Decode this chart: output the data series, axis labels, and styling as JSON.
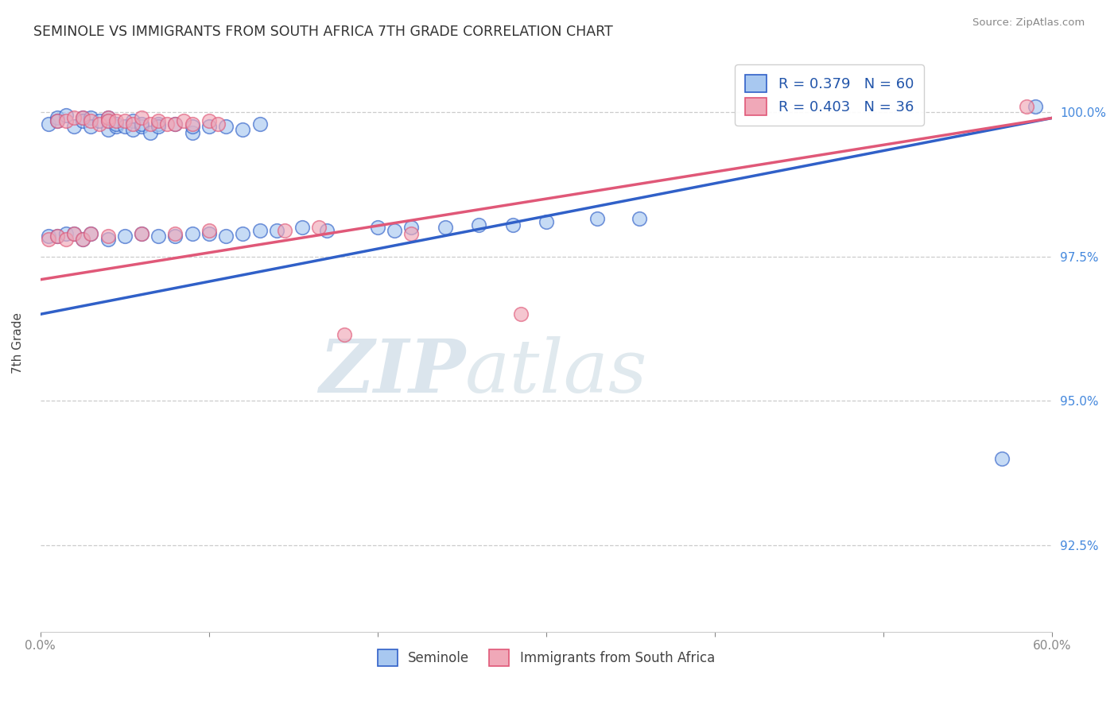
{
  "title": "SEMINOLE VS IMMIGRANTS FROM SOUTH AFRICA 7TH GRADE CORRELATION CHART",
  "source": "Source: ZipAtlas.com",
  "ylabel": "7th Grade",
  "x_min": 0.0,
  "x_max": 0.6,
  "y_min": 0.91,
  "y_max": 1.01,
  "legend_seminole": "Seminole",
  "legend_immigrants": "Immigrants from South Africa",
  "R_seminole": 0.379,
  "N_seminole": 60,
  "R_immigrants": 0.403,
  "N_immigrants": 36,
  "color_seminole": "#A8C8F0",
  "color_immigrants": "#F0A8B8",
  "color_line_seminole": "#3060C8",
  "color_line_immigrants": "#E05878",
  "blue_x": [
    0.005,
    0.01,
    0.01,
    0.015,
    0.02,
    0.025,
    0.025,
    0.03,
    0.03,
    0.035,
    0.04,
    0.04,
    0.04,
    0.045,
    0.045,
    0.05,
    0.055,
    0.055,
    0.06,
    0.06,
    0.065,
    0.07,
    0.07,
    0.08,
    0.09,
    0.09,
    0.1,
    0.11,
    0.12,
    0.13,
    0.005,
    0.01,
    0.015,
    0.02,
    0.025,
    0.03,
    0.04,
    0.05,
    0.06,
    0.07,
    0.08,
    0.09,
    0.1,
    0.11,
    0.12,
    0.13,
    0.14,
    0.155,
    0.17,
    0.2,
    0.21,
    0.22,
    0.24,
    0.26,
    0.28,
    0.3,
    0.33,
    0.355,
    0.57,
    0.59
  ],
  "blue_y": [
    0.998,
    0.999,
    0.9985,
    0.9995,
    0.9975,
    0.999,
    0.9985,
    0.999,
    0.9975,
    0.9985,
    0.999,
    0.9985,
    0.997,
    0.9975,
    0.998,
    0.9975,
    0.9985,
    0.997,
    0.9975,
    0.998,
    0.9965,
    0.998,
    0.9975,
    0.998,
    0.9965,
    0.9975,
    0.9975,
    0.9975,
    0.997,
    0.998,
    0.9785,
    0.9785,
    0.979,
    0.979,
    0.978,
    0.979,
    0.978,
    0.9785,
    0.979,
    0.9785,
    0.9785,
    0.979,
    0.979,
    0.9785,
    0.979,
    0.9795,
    0.9795,
    0.98,
    0.9795,
    0.98,
    0.9795,
    0.98,
    0.98,
    0.9805,
    0.9805,
    0.981,
    0.9815,
    0.9815,
    0.94,
    1.001
  ],
  "pink_x": [
    0.01,
    0.015,
    0.02,
    0.025,
    0.03,
    0.035,
    0.04,
    0.04,
    0.045,
    0.05,
    0.055,
    0.06,
    0.065,
    0.07,
    0.075,
    0.08,
    0.085,
    0.09,
    0.1,
    0.105,
    0.005,
    0.01,
    0.015,
    0.02,
    0.025,
    0.03,
    0.04,
    0.06,
    0.08,
    0.1,
    0.145,
    0.165,
    0.18,
    0.22,
    0.285,
    0.585
  ],
  "pink_y": [
    0.9985,
    0.9985,
    0.999,
    0.999,
    0.9985,
    0.998,
    0.999,
    0.9985,
    0.9985,
    0.9985,
    0.998,
    0.999,
    0.998,
    0.9985,
    0.998,
    0.998,
    0.9985,
    0.998,
    0.9985,
    0.998,
    0.978,
    0.9785,
    0.978,
    0.979,
    0.978,
    0.979,
    0.9785,
    0.979,
    0.979,
    0.9795,
    0.9795,
    0.98,
    0.9615,
    0.979,
    0.965,
    1.001
  ],
  "blue_line_x0": 0.0,
  "blue_line_y0": 0.965,
  "blue_line_x1": 0.6,
  "blue_line_y1": 0.999,
  "pink_line_x0": 0.0,
  "pink_line_y0": 0.971,
  "pink_line_x1": 0.6,
  "pink_line_y1": 0.999,
  "watermark_zip": "ZIP",
  "watermark_atlas": "atlas",
  "background_color": "#FFFFFF",
  "grid_color": "#CCCCCC"
}
